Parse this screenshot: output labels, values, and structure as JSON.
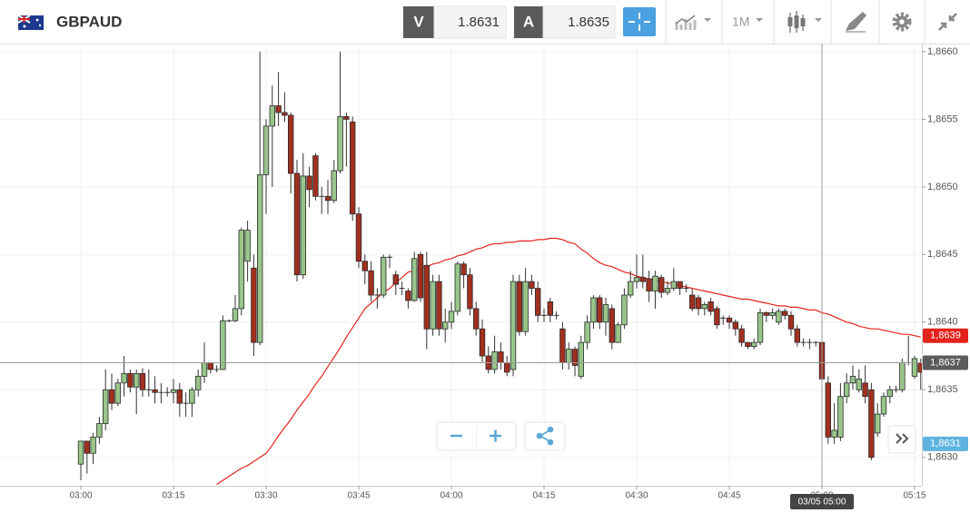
{
  "toolbar": {
    "symbol": "GBPAUD",
    "bid": {
      "label": "V",
      "price": "1.8631"
    },
    "ask": {
      "label": "A",
      "price": "1.8635"
    },
    "timeframe": "1M"
  },
  "chart_data": {
    "type": "candlestick",
    "x": [
      "03:00",
      "03:01",
      "03:02",
      "03:03",
      "03:04",
      "03:05",
      "03:06",
      "03:07",
      "03:08",
      "03:09",
      "03:10",
      "03:11",
      "03:12",
      "03:13",
      "03:14",
      "03:15",
      "03:16",
      "03:17",
      "03:18",
      "03:19",
      "03:20",
      "03:21",
      "03:22",
      "03:23",
      "03:24",
      "03:25",
      "03:26",
      "03:27",
      "03:28",
      "03:29",
      "03:30",
      "03:31",
      "03:32",
      "03:33",
      "03:34",
      "03:35",
      "03:36",
      "03:37",
      "03:38",
      "03:39",
      "03:40",
      "03:41",
      "03:42",
      "03:43",
      "03:44",
      "03:45",
      "03:46",
      "03:47",
      "03:48",
      "03:49",
      "03:50",
      "03:51",
      "03:52",
      "03:53",
      "03:54",
      "03:55",
      "03:56",
      "03:57",
      "03:58",
      "03:59",
      "04:00",
      "04:01",
      "04:02",
      "04:03",
      "04:04",
      "04:05",
      "04:06",
      "04:07",
      "04:08",
      "04:09",
      "04:10",
      "04:11",
      "04:12",
      "04:13",
      "04:14",
      "04:15",
      "04:16",
      "04:17",
      "04:18",
      "04:19",
      "04:20",
      "04:21",
      "04:22",
      "04:23",
      "04:24",
      "04:25",
      "04:26",
      "04:27",
      "04:28",
      "04:29",
      "04:30",
      "04:31",
      "04:32",
      "04:33",
      "04:34",
      "04:35",
      "04:36",
      "04:37",
      "04:38",
      "04:39",
      "04:40",
      "04:41",
      "04:42",
      "04:43",
      "04:44",
      "04:45",
      "04:46",
      "04:47",
      "04:48",
      "04:49",
      "04:50",
      "04:51",
      "04:52",
      "04:53",
      "04:54",
      "04:55",
      "04:56",
      "04:57",
      "04:58",
      "04:59",
      "05:00",
      "05:01",
      "05:02",
      "05:03",
      "05:04",
      "05:05",
      "05:06",
      "05:07",
      "05:08",
      "05:09",
      "05:10",
      "05:11",
      "05:12",
      "05:13",
      "05:14",
      "05:15",
      "05:16"
    ],
    "open": [
      1.86295,
      1.86312,
      1.86303,
      1.86315,
      1.86325,
      1.8635,
      1.8634,
      1.86355,
      1.86362,
      1.86352,
      1.86362,
      1.8635,
      1.8635,
      1.86348,
      1.86348,
      1.86348,
      1.8635,
      1.8634,
      1.8634,
      1.8635,
      1.8636,
      1.8637,
      1.86365,
      1.86365,
      1.86401,
      1.86401,
      1.8641,
      1.86445,
      1.8644,
      1.86385,
      1.86509,
      1.86545,
      1.8656,
      1.86555,
      1.86553,
      1.8651,
      1.86435,
      1.86508,
      1.86523,
      1.86493,
      1.86493,
      1.8649,
      1.86512,
      1.86552,
      1.86548,
      1.8648,
      1.86445,
      1.86438,
      1.8642,
      1.8642,
      1.86448,
      1.86435,
      1.86425,
      1.86423,
      1.86416,
      1.8645,
      1.86442,
      1.86395,
      1.8643,
      1.86395,
      1.864,
      1.86408,
      1.86443,
      1.86435,
      1.8641,
      1.86395,
      1.86375,
      1.86365,
      1.86378,
      1.8637,
      1.86365,
      1.8643,
      1.86393,
      1.8643,
      1.86425,
      1.86405,
      1.86415,
      1.86405,
      1.86395,
      1.8637,
      1.8638,
      1.8636,
      1.86385,
      1.864,
      1.86418,
      1.864,
      1.8641,
      1.86385,
      1.86398,
      1.8642,
      1.8643,
      1.86433,
      1.86432,
      1.86423,
      1.86433,
      1.86422,
      1.86425,
      1.8643,
      1.86425,
      1.8642,
      1.86418,
      1.8641,
      1.86415,
      1.8641,
      1.86403,
      1.86403,
      1.864,
      1.86395,
      1.86385,
      1.86382,
      1.86385,
      1.86407,
      1.86405,
      1.864,
      1.86408,
      1.86405,
      1.86395,
      1.86385,
      1.86385,
      1.86385,
      1.86385,
      1.86355,
      1.86315,
      1.86315,
      1.86345,
      1.86355,
      1.8635,
      1.86355,
      1.8635,
      1.86318,
      1.86332,
      1.86345,
      1.8635,
      1.8635,
      1.8637,
      1.8636,
      1.8637
    ],
    "high": [
      1.86312,
      1.86312,
      1.86318,
      1.8633,
      1.86365,
      1.86362,
      1.86358,
      1.86375,
      1.86365,
      1.86365,
      1.86366,
      1.86365,
      1.8636,
      1.86355,
      1.86352,
      1.86358,
      1.86355,
      1.86348,
      1.86352,
      1.86365,
      1.86385,
      1.8637,
      1.86368,
      1.86405,
      1.86402,
      1.8642,
      1.8647,
      1.86475,
      1.8645,
      1.866,
      1.8655,
      1.86575,
      1.86585,
      1.8657,
      1.86555,
      1.8652,
      1.86525,
      1.86515,
      1.86525,
      1.865,
      1.86505,
      1.8652,
      1.866,
      1.86555,
      1.86552,
      1.86485,
      1.8645,
      1.86445,
      1.86425,
      1.8645,
      1.8645,
      1.86438,
      1.8643,
      1.86425,
      1.86452,
      1.86452,
      1.86452,
      1.86435,
      1.86435,
      1.8641,
      1.86415,
      1.86445,
      1.86445,
      1.8644,
      1.86415,
      1.86402,
      1.86382,
      1.8639,
      1.86385,
      1.86375,
      1.86435,
      1.86435,
      1.8644,
      1.86435,
      1.8643,
      1.8641,
      1.86418,
      1.86408,
      1.864,
      1.86385,
      1.86382,
      1.8639,
      1.86405,
      1.8642,
      1.8642,
      1.86418,
      1.86413,
      1.864,
      1.86425,
      1.86438,
      1.8645,
      1.8645,
      1.86438,
      1.86438,
      1.86435,
      1.8643,
      1.8644,
      1.8643,
      1.86428,
      1.86425,
      1.8642,
      1.86415,
      1.86418,
      1.86412,
      1.86405,
      1.86405,
      1.86402,
      1.86398,
      1.86385,
      1.86388,
      1.8641,
      1.86408,
      1.8641,
      1.8641,
      1.8641,
      1.86408,
      1.86398,
      1.86388,
      1.86388,
      1.86386,
      1.86388,
      1.8636,
      1.8634,
      1.86355,
      1.86362,
      1.86368,
      1.86365,
      1.86368,
      1.86355,
      1.8634,
      1.86348,
      1.86353,
      1.86353,
      1.86373,
      1.8639,
      1.86375,
      1.86373
    ],
    "low": [
      1.86283,
      1.86288,
      1.86295,
      1.8631,
      1.8632,
      1.86335,
      1.86338,
      1.86345,
      1.86348,
      1.86332,
      1.86345,
      1.86345,
      1.8634,
      1.8634,
      1.86345,
      1.8634,
      1.8633,
      1.8633,
      1.8633,
      1.86345,
      1.86355,
      1.86362,
      1.86363,
      1.86365,
      1.864,
      1.864,
      1.86405,
      1.8643,
      1.86375,
      1.86383,
      1.8648,
      1.865,
      1.86545,
      1.86548,
      1.86495,
      1.8643,
      1.86432,
      1.86485,
      1.8649,
      1.8648,
      1.8648,
      1.86488,
      1.8651,
      1.86515,
      1.86475,
      1.8644,
      1.86428,
      1.86415,
      1.8641,
      1.86418,
      1.8644,
      1.8642,
      1.8642,
      1.8641,
      1.86415,
      1.86415,
      1.8638,
      1.8639,
      1.8639,
      1.86385,
      1.86395,
      1.86405,
      1.86425,
      1.86405,
      1.8639,
      1.8637,
      1.86362,
      1.86362,
      1.86365,
      1.8636,
      1.8636,
      1.8639,
      1.8639,
      1.8642,
      1.864,
      1.864,
      1.864,
      1.86402,
      1.86365,
      1.86365,
      1.8636,
      1.86358,
      1.8638,
      1.86395,
      1.86395,
      1.8639,
      1.8638,
      1.86385,
      1.86395,
      1.86418,
      1.86425,
      1.86425,
      1.86415,
      1.8641,
      1.86418,
      1.8642,
      1.86423,
      1.8642,
      1.86422,
      1.86408,
      1.86405,
      1.86405,
      1.86405,
      1.86395,
      1.86398,
      1.86395,
      1.8639,
      1.86382,
      1.8638,
      1.8638,
      1.86383,
      1.864,
      1.86402,
      1.86398,
      1.86402,
      1.8639,
      1.86382,
      1.86382,
      1.8638,
      1.86382,
      1.86355,
      1.8631,
      1.8631,
      1.86312,
      1.8634,
      1.8635,
      1.86348,
      1.8634,
      1.86298,
      1.86315,
      1.8633,
      1.8634,
      1.86348,
      1.86348,
      1.86368,
      1.86358,
      1.8635
    ],
    "close": [
      1.86312,
      1.86303,
      1.86315,
      1.86325,
      1.8635,
      1.8634,
      1.86355,
      1.86362,
      1.86352,
      1.86362,
      1.8635,
      1.8635,
      1.86348,
      1.86348,
      1.86348,
      1.8635,
      1.8634,
      1.8634,
      1.8635,
      1.8636,
      1.8637,
      1.86365,
      1.86365,
      1.86401,
      1.86401,
      1.8641,
      1.86468,
      1.86468,
      1.86385,
      1.86509,
      1.86545,
      1.8656,
      1.86555,
      1.86553,
      1.8651,
      1.86435,
      1.86508,
      1.86498,
      1.86493,
      1.86493,
      1.8649,
      1.86512,
      1.86552,
      1.8655,
      1.8648,
      1.86445,
      1.86438,
      1.8642,
      1.8642,
      1.86448,
      1.86448,
      1.86428,
      1.86425,
      1.86416,
      1.86447,
      1.86418,
      1.86395,
      1.8643,
      1.86395,
      1.864,
      1.86408,
      1.86443,
      1.86435,
      1.8641,
      1.86395,
      1.86375,
      1.86365,
      1.86378,
      1.8637,
      1.86363,
      1.8643,
      1.86393,
      1.8643,
      1.86425,
      1.86405,
      1.86405,
      1.86405,
      1.86405,
      1.8637,
      1.8638,
      1.86368,
      1.86385,
      1.864,
      1.86418,
      1.864,
      1.86413,
      1.86385,
      1.86398,
      1.8642,
      1.8643,
      1.86433,
      1.8643,
      1.86423,
      1.86434,
      1.86422,
      1.86425,
      1.8643,
      1.86425,
      1.86425,
      1.8641,
      1.8641,
      1.86413,
      1.86408,
      1.86398,
      1.86403,
      1.864,
      1.86395,
      1.86385,
      1.86382,
      1.86385,
      1.86407,
      1.86405,
      1.86407,
      1.86408,
      1.86405,
      1.86395,
      1.86385,
      1.86385,
      1.86385,
      1.86385,
      1.86358,
      1.86315,
      1.8632,
      1.86345,
      1.86355,
      1.8636,
      1.86358,
      1.86345,
      1.863,
      1.86332,
      1.86345,
      1.8635,
      1.8635,
      1.8637,
      1.8637,
      1.86373,
      1.86363
    ],
    "up_color": "#98c58a",
    "down_color": "#a1301f",
    "ma": {
      "color": "#e3231c",
      "values": [
        null,
        null,
        null,
        null,
        null,
        null,
        null,
        null,
        null,
        null,
        null,
        null,
        null,
        null,
        null,
        null,
        null,
        null,
        null,
        null,
        null,
        null,
        1.8628,
        1.86283,
        1.86286,
        1.86289,
        1.86292,
        1.86294,
        1.86297,
        1.863,
        1.86303,
        1.86309,
        1.86316,
        1.86322,
        1.86328,
        1.86335,
        1.86341,
        1.86347,
        1.86354,
        1.8636,
        1.86367,
        1.86374,
        1.86381,
        1.86389,
        1.86396,
        1.86403,
        1.8641,
        1.86414,
        1.86418,
        1.86422,
        1.86425,
        1.86429,
        1.86433,
        1.86437,
        1.86438,
        1.8644,
        1.86441,
        1.86443,
        1.86444,
        1.86446,
        1.86447,
        1.86449,
        1.8645,
        1.86452,
        1.86454,
        1.86455,
        1.86457,
        1.86458,
        1.86458,
        1.86459,
        1.86459,
        1.8646,
        1.8646,
        1.8646,
        1.86461,
        1.86461,
        1.86462,
        1.86462,
        1.86461,
        1.86459,
        1.86458,
        1.86454,
        1.86451,
        1.86447,
        1.86444,
        1.86442,
        1.86441,
        1.86439,
        1.86437,
        1.86436,
        1.86434,
        1.86433,
        1.86432,
        1.86431,
        1.8643,
        1.86429,
        1.86428,
        1.86427,
        1.86426,
        1.86425,
        1.86424,
        1.86423,
        1.86422,
        1.86421,
        1.8642,
        1.86419,
        1.86418,
        1.86417,
        1.86417,
        1.86416,
        1.86415,
        1.86414,
        1.86413,
        1.86412,
        1.86412,
        1.86411,
        1.86411,
        1.8641,
        1.86409,
        1.86409,
        1.86407,
        1.86406,
        1.86404,
        1.86402,
        1.864,
        1.86399,
        1.86397,
        1.86396,
        1.86395,
        1.86395,
        1.86394,
        1.86393,
        1.86392,
        1.86391,
        1.86391,
        1.8639,
        1.86389
      ],
      "last": {
        "value": 1.8639,
        "label": "1,8639"
      }
    },
    "last_price": {
      "value": 1.8637,
      "label": "1,8637"
    },
    "bid_price": {
      "value": 1.8631,
      "label": "1,8631"
    },
    "crosshair": {
      "x": "05:00",
      "label": "03/05 05:00"
    },
    "ylim": [
      1.86279,
      1.86606
    ],
    "yticks": [
      {
        "value": 1.866,
        "label": "1,8660"
      },
      {
        "value": 1.8655,
        "label": "1,8655"
      },
      {
        "value": 1.865,
        "label": "1,8650"
      },
      {
        "value": 1.8645,
        "label": "1,8645"
      },
      {
        "value": 1.864,
        "label": "1,8640"
      },
      {
        "value": 1.8635,
        "label": "1,8635"
      },
      {
        "value": 1.863,
        "label": "1,8630"
      }
    ],
    "xticks": [
      "03:00",
      "03:15",
      "03:30",
      "03:45",
      "04:00",
      "04:15",
      "04:30",
      "04:45",
      "05:00",
      "05:15"
    ],
    "grid": true
  }
}
